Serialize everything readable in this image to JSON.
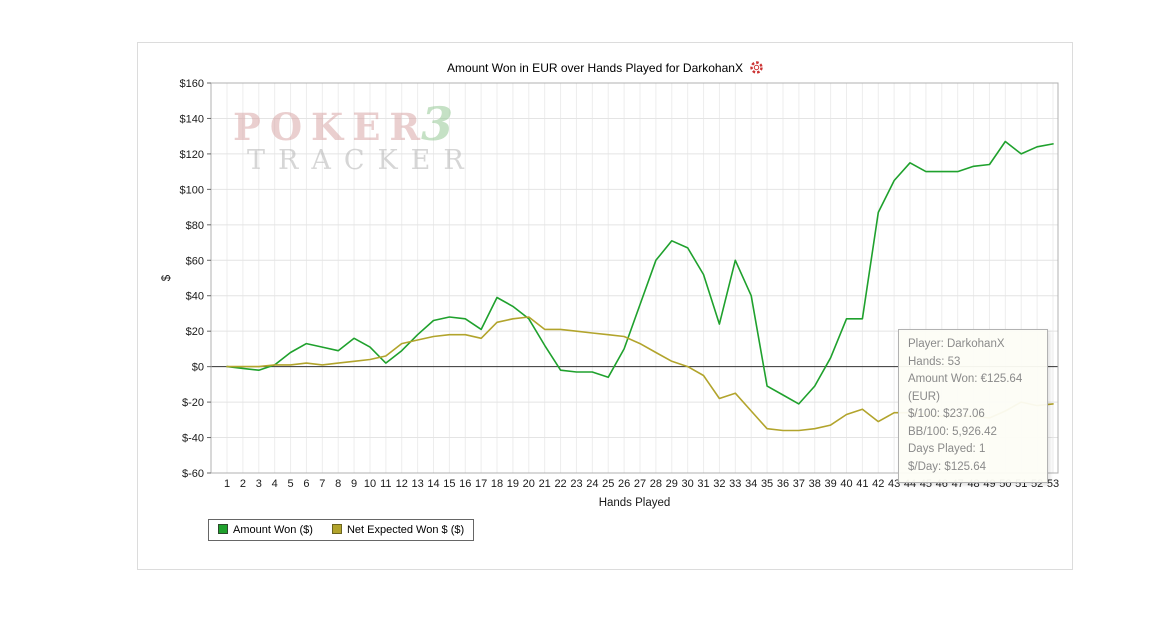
{
  "title": "Amount Won in EUR over Hands Played for DarkohanX",
  "watermark": {
    "word1": "POKER",
    "word2": "TRACKER",
    "word3": "3"
  },
  "tooltip": {
    "lines": [
      "Player: DarkohanX",
      "Hands: 53",
      "Amount Won: €125.64 (EUR)",
      "$/100: $237.06",
      "BB/100: 5,926.42",
      "Days Played: 1",
      "$/Day: $125.64"
    ]
  },
  "legend": [
    {
      "label": "Amount Won ($)",
      "color": "#1fa12d"
    },
    {
      "label": "Net Expected Won $ ($)",
      "color": "#b2a42c"
    }
  ],
  "chart_data": {
    "type": "line",
    "title": "Amount Won in EUR over Hands Played for DarkohanX",
    "xlabel": "Hands Played",
    "ylabel": "$",
    "ylim": [
      -60,
      160
    ],
    "ytick_step": 20,
    "grid": true,
    "legend_position": "bottom-left",
    "x": [
      1,
      2,
      3,
      4,
      5,
      6,
      7,
      8,
      9,
      10,
      11,
      12,
      13,
      14,
      15,
      16,
      17,
      18,
      19,
      20,
      21,
      22,
      23,
      24,
      25,
      26,
      27,
      28,
      29,
      30,
      31,
      32,
      33,
      34,
      35,
      36,
      37,
      38,
      39,
      40,
      41,
      42,
      43,
      44,
      45,
      46,
      47,
      48,
      49,
      50,
      51,
      52,
      53
    ],
    "series": [
      {
        "name": "Amount Won ($)",
        "color": "#1fa12d",
        "values": [
          0,
          -1,
          -2,
          1,
          8,
          13,
          11,
          9,
          16,
          11,
          2,
          9,
          18,
          26,
          28,
          27,
          21,
          39,
          34,
          27,
          12,
          -2,
          -3,
          -3,
          -6,
          10,
          35,
          60,
          71,
          67,
          52,
          24,
          60,
          40,
          -11,
          -16,
          -21,
          -11,
          5,
          27,
          27,
          87,
          105,
          115,
          110,
          110,
          110,
          113,
          114,
          127,
          120,
          124,
          125.64
        ]
      },
      {
        "name": "Net Expected Won $ ($)",
        "color": "#b2a42c",
        "values": [
          0,
          0,
          0,
          1,
          1,
          2,
          1,
          2,
          3,
          4,
          6,
          13,
          15,
          17,
          18,
          18,
          16,
          25,
          27,
          28,
          21,
          21,
          20,
          19,
          18,
          17,
          13,
          8,
          3,
          0,
          -5,
          -18,
          -15,
          -25,
          -35,
          -36,
          -36,
          -35,
          -33,
          -27,
          -24,
          -31,
          -26,
          -26,
          -27,
          -28,
          -28,
          -28,
          -29,
          -25,
          -20,
          -22,
          -21
        ]
      }
    ]
  }
}
